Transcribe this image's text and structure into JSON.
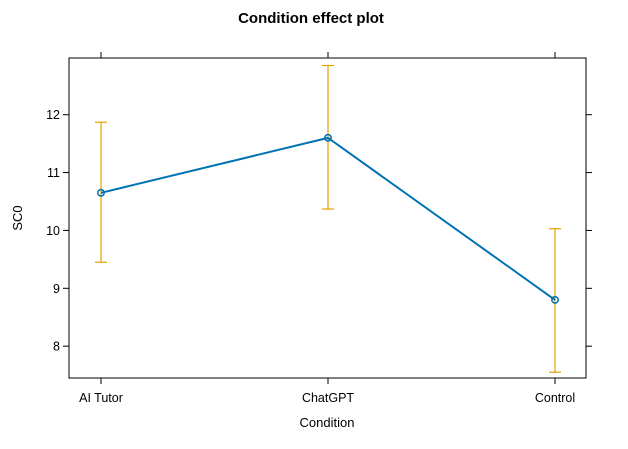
{
  "chart_data": {
    "type": "line",
    "title": "Condition effect plot",
    "xlabel": "Condition",
    "ylabel": "SC0",
    "categories": [
      "AI Tutor",
      "ChatGPT",
      "Control"
    ],
    "series": [
      {
        "values": [
          10.65,
          11.6,
          8.8
        ],
        "ci_lower": [
          9.45,
          10.37,
          7.55
        ],
        "ci_upper": [
          11.87,
          12.85,
          10.03
        ]
      }
    ],
    "yticks": [
      8,
      9,
      10,
      11,
      12
    ],
    "ylim": [
      7.45,
      12.98
    ],
    "grid": false,
    "legend": "none",
    "colors": {
      "line": "#0072B2",
      "error_bar": "#E69F00",
      "axis": "#000000"
    }
  }
}
